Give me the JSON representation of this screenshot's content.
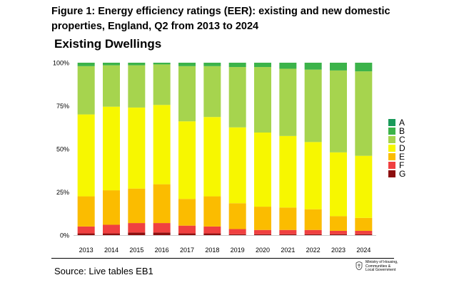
{
  "header": {
    "title": "Figure 1: Energy efficiency ratings (EER): existing and new domestic properties, England, Q2 from 2013 to 2024",
    "subtitle": "Existing Dwellings"
  },
  "footer": {
    "source": "Source: Live tables EB1",
    "department_lines": [
      "Ministry of Housing,",
      "Communities &",
      "Local Government"
    ]
  },
  "colors": {
    "A": "#1a9a5a",
    "B": "#3cb34a",
    "C": "#a6d44e",
    "D": "#f7f700",
    "E": "#fbbc00",
    "F": "#f04040",
    "G": "#8c0e0e"
  },
  "chart_data": {
    "type": "bar",
    "stacked": true,
    "categories": [
      "2013",
      "2014",
      "2015",
      "2016",
      "2017",
      "2018",
      "2019",
      "2020",
      "2021",
      "2022",
      "2023",
      "2024"
    ],
    "series": [
      {
        "name": "G",
        "values": [
          1.0,
          1.0,
          1.5,
          1.5,
          1.0,
          1.0,
          0.5,
          0.5,
          0.5,
          0.5,
          0.5,
          0.5
        ]
      },
      {
        "name": "F",
        "values": [
          4.0,
          5.0,
          5.5,
          5.5,
          4.5,
          4.0,
          3.0,
          2.5,
          2.5,
          2.5,
          2.0,
          2.0
        ]
      },
      {
        "name": "E",
        "values": [
          17.5,
          20.0,
          20.0,
          22.5,
          15.5,
          17.5,
          15.0,
          13.5,
          13.0,
          12.0,
          8.5,
          7.5
        ]
      },
      {
        "name": "D",
        "values": [
          47.5,
          48.5,
          47.0,
          46.0,
          45.0,
          46.0,
          44.0,
          43.0,
          41.5,
          39.0,
          37.0,
          36.0
        ]
      },
      {
        "name": "C",
        "values": [
          28.0,
          24.0,
          24.5,
          23.5,
          32.0,
          29.5,
          35.0,
          38.0,
          39.0,
          42.0,
          47.5,
          49.0
        ]
      },
      {
        "name": "B",
        "values": [
          2.0,
          1.5,
          1.5,
          1.0,
          2.0,
          2.0,
          2.5,
          2.5,
          3.5,
          4.0,
          4.5,
          5.0
        ]
      },
      {
        "name": "A",
        "values": [
          0,
          0,
          0,
          0,
          0,
          0,
          0,
          0,
          0,
          0,
          0,
          0
        ]
      }
    ],
    "legend": [
      "A",
      "B",
      "C",
      "D",
      "E",
      "F",
      "G"
    ],
    "legend_position": "right",
    "title": "Existing Dwellings",
    "xlabel": "",
    "ylabel": "",
    "ylim": [
      0,
      100
    ],
    "yticks": [
      "0%",
      "25%",
      "50%",
      "75%",
      "100%"
    ],
    "grid": false
  }
}
